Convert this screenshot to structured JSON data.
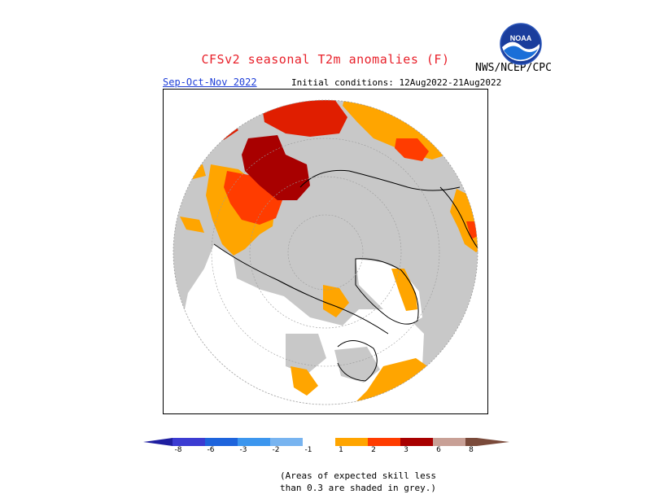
{
  "header": {
    "title": "CFSv2 seasonal T2m anomalies (F)",
    "agency": "NWS/NCEP/CPC",
    "season": "Sep-Oct-Nov 2022",
    "initial_conditions": "Initial conditions: 12Aug2022-21Aug2022",
    "logo_text": "NOAA"
  },
  "colors": {
    "land_background": "#c8c8c8",
    "ocean": "#ffffff",
    "neutral": "#ffffff",
    "warm_1_2": "#ffa500",
    "warm_2_3": "#ff3c00",
    "warm_3_6": "#e01e00",
    "warm_6_8": "#a80000",
    "warm_gt8": "#c8a096",
    "cold_lt8": "#1e1ea0",
    "cold_8_6": "#3c3cd2",
    "cold_6_3": "#1e64dc",
    "cold_3_2": "#3c96ee",
    "cold_2_1": "#78b4f0"
  },
  "colorbar": {
    "labels": [
      "-8",
      "-6",
      "-3",
      "-2",
      "-1",
      "1",
      "2",
      "3",
      "6",
      "8"
    ]
  },
  "footer": {
    "note_line1": "(Areas of expected skill less",
    "note_line2": "than 0.3 are shaded in grey.)"
  }
}
